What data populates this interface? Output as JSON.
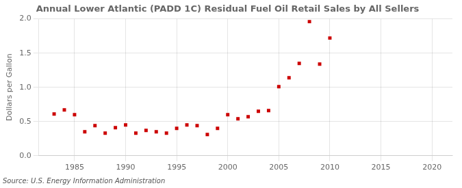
{
  "chart_data": {
    "type": "scatter",
    "title": "Annual Lower Atlantic (PADD 1C) Residual Fuel Oil Retail Sales by All Sellers",
    "ylabel": "Dollars per Gallon",
    "source": "Source: U.S. Energy Information Administration",
    "x": [
      1983,
      1984,
      1985,
      1986,
      1987,
      1988,
      1989,
      1990,
      1991,
      1992,
      1993,
      1994,
      1995,
      1996,
      1997,
      1998,
      1999,
      2000,
      2001,
      2002,
      2003,
      2004,
      2005,
      2006,
      2007,
      2008,
      2009,
      2010
    ],
    "values": [
      0.61,
      0.67,
      0.6,
      0.35,
      0.44,
      0.33,
      0.41,
      0.45,
      0.33,
      0.37,
      0.35,
      0.33,
      0.4,
      0.45,
      0.44,
      0.31,
      0.4,
      0.6,
      0.54,
      0.57,
      0.65,
      0.66,
      1.01,
      1.14,
      1.35,
      1.96,
      1.34,
      1.72
    ],
    "color": "#cc0000",
    "marker": "square",
    "xlim": [
      1981.5,
      2022
    ],
    "xticks": [
      1985,
      1990,
      1995,
      2000,
      2005,
      2010,
      2015,
      2020
    ],
    "ylim": [
      0.0,
      2.0
    ],
    "yticks": [
      {
        "value": 0,
        "label": "0.0"
      },
      0.5,
      {
        "value": 1,
        "label": "1.0"
      },
      1.5,
      {
        "value": 2,
        "label": "2.0"
      }
    ],
    "grid": true
  }
}
